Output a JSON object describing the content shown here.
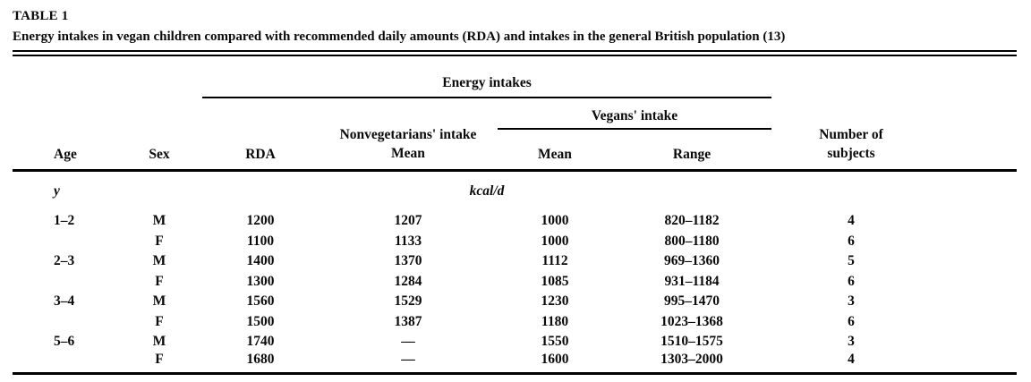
{
  "colors": {
    "text": "#0a0a0a",
    "background": "#ffffff"
  },
  "table": {
    "label": "TABLE 1",
    "caption": "Energy intakes in vegan children compared with recommended daily amounts (RDA) and intakes in the general British population (13)",
    "headers": {
      "age": "Age",
      "sex": "Sex",
      "energy_intakes": "Energy intakes",
      "rda": "RDA",
      "nonvegetarians_intake_line1": "Nonvegetarians' intake",
      "nonvegetarians_intake_line2": "Mean",
      "vegans_intake": "Vegans' intake",
      "vegans_mean": "Mean",
      "vegans_range": "Range",
      "subjects_line1": "Number of",
      "subjects_line2": "subjects"
    },
    "units": {
      "age": "y",
      "energy": "kcal/d"
    },
    "rows": [
      [
        "1–2",
        "M",
        "1200",
        "1207",
        "1000",
        "820–1182",
        "4"
      ],
      [
        "",
        "F",
        "1100",
        "1133",
        "1000",
        "800–1180",
        "6"
      ],
      [
        "2–3",
        "M",
        "1400",
        "1370",
        "1112",
        "969–1360",
        "5"
      ],
      [
        "",
        "F",
        "1300",
        "1284",
        "1085",
        "931–1184",
        "6"
      ],
      [
        "3–4",
        "M",
        "1560",
        "1529",
        "1230",
        "995–1470",
        "3"
      ],
      [
        "",
        "F",
        "1500",
        "1387",
        "1180",
        "1023–1368",
        "6"
      ],
      [
        "5–6",
        "M",
        "1740",
        "—",
        "1550",
        "1510–1575",
        "3"
      ],
      [
        "",
        "F",
        "1680",
        "—",
        "1600",
        "1303–2000",
        "4"
      ]
    ]
  }
}
